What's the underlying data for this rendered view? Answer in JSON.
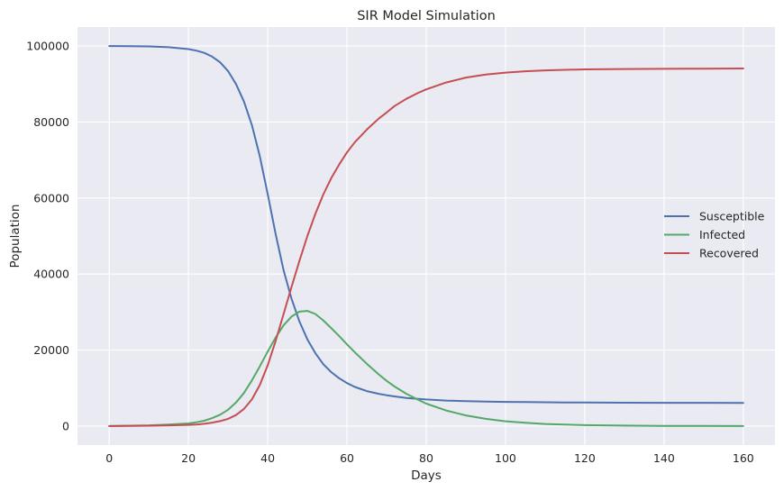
{
  "chart_data": {
    "type": "line",
    "title": "SIR Model Simulation",
    "xlabel": "Days",
    "ylabel": "Population",
    "xlim": [
      -8,
      168
    ],
    "ylim": [
      -5000,
      105000
    ],
    "xticks": [
      0,
      20,
      40,
      60,
      80,
      100,
      120,
      140,
      160
    ],
    "yticks": [
      0,
      20000,
      40000,
      60000,
      80000,
      100000
    ],
    "grid": true,
    "legend_position": "center-right",
    "x": [
      0,
      5,
      10,
      15,
      20,
      22,
      24,
      26,
      28,
      30,
      32,
      34,
      36,
      38,
      40,
      42,
      44,
      46,
      48,
      50,
      52,
      54,
      56,
      58,
      60,
      62,
      65,
      68,
      70,
      72,
      75,
      78,
      80,
      85,
      90,
      95,
      100,
      105,
      110,
      115,
      120,
      130,
      140,
      150,
      160
    ],
    "series": [
      {
        "name": "Susceptible",
        "color": "#4c72b0",
        "values": [
          100000,
          99980,
          99900,
          99700,
          99200,
          98800,
          98200,
          97200,
          95700,
          93400,
          90000,
          85400,
          79200,
          71000,
          61000,
          50500,
          41000,
          33500,
          27500,
          22800,
          19200,
          16300,
          14200,
          12600,
          11300,
          10300,
          9200,
          8500,
          8100,
          7800,
          7400,
          7150,
          7000,
          6700,
          6550,
          6450,
          6350,
          6300,
          6250,
          6200,
          6180,
          6150,
          6120,
          6110,
          6100
        ]
      },
      {
        "name": "Infected",
        "color": "#55a868",
        "values": [
          0,
          100,
          200,
          400,
          700,
          1000,
          1400,
          2100,
          3000,
          4300,
          6200,
          8700,
          12000,
          15700,
          19600,
          23300,
          26500,
          28800,
          30100,
          30300,
          29500,
          27800,
          25800,
          23700,
          21500,
          19400,
          16400,
          13600,
          11900,
          10400,
          8500,
          6900,
          5900,
          4100,
          2800,
          1900,
          1250,
          850,
          550,
          380,
          250,
          110,
          60,
          30,
          0
        ]
      },
      {
        "name": "Recovered",
        "color": "#c44e52",
        "values": [
          0,
          50,
          100,
          200,
          300,
          400,
          600,
          900,
          1300,
          1900,
          2900,
          4500,
          7000,
          10800,
          16000,
          22400,
          29500,
          36600,
          43500,
          50000,
          55800,
          60900,
          65200,
          68800,
          72000,
          74700,
          78000,
          80900,
          82500,
          84200,
          86100,
          87700,
          88600,
          90400,
          91700,
          92500,
          93000,
          93350,
          93600,
          93750,
          93850,
          93950,
          94000,
          94050,
          94100
        ]
      }
    ]
  }
}
